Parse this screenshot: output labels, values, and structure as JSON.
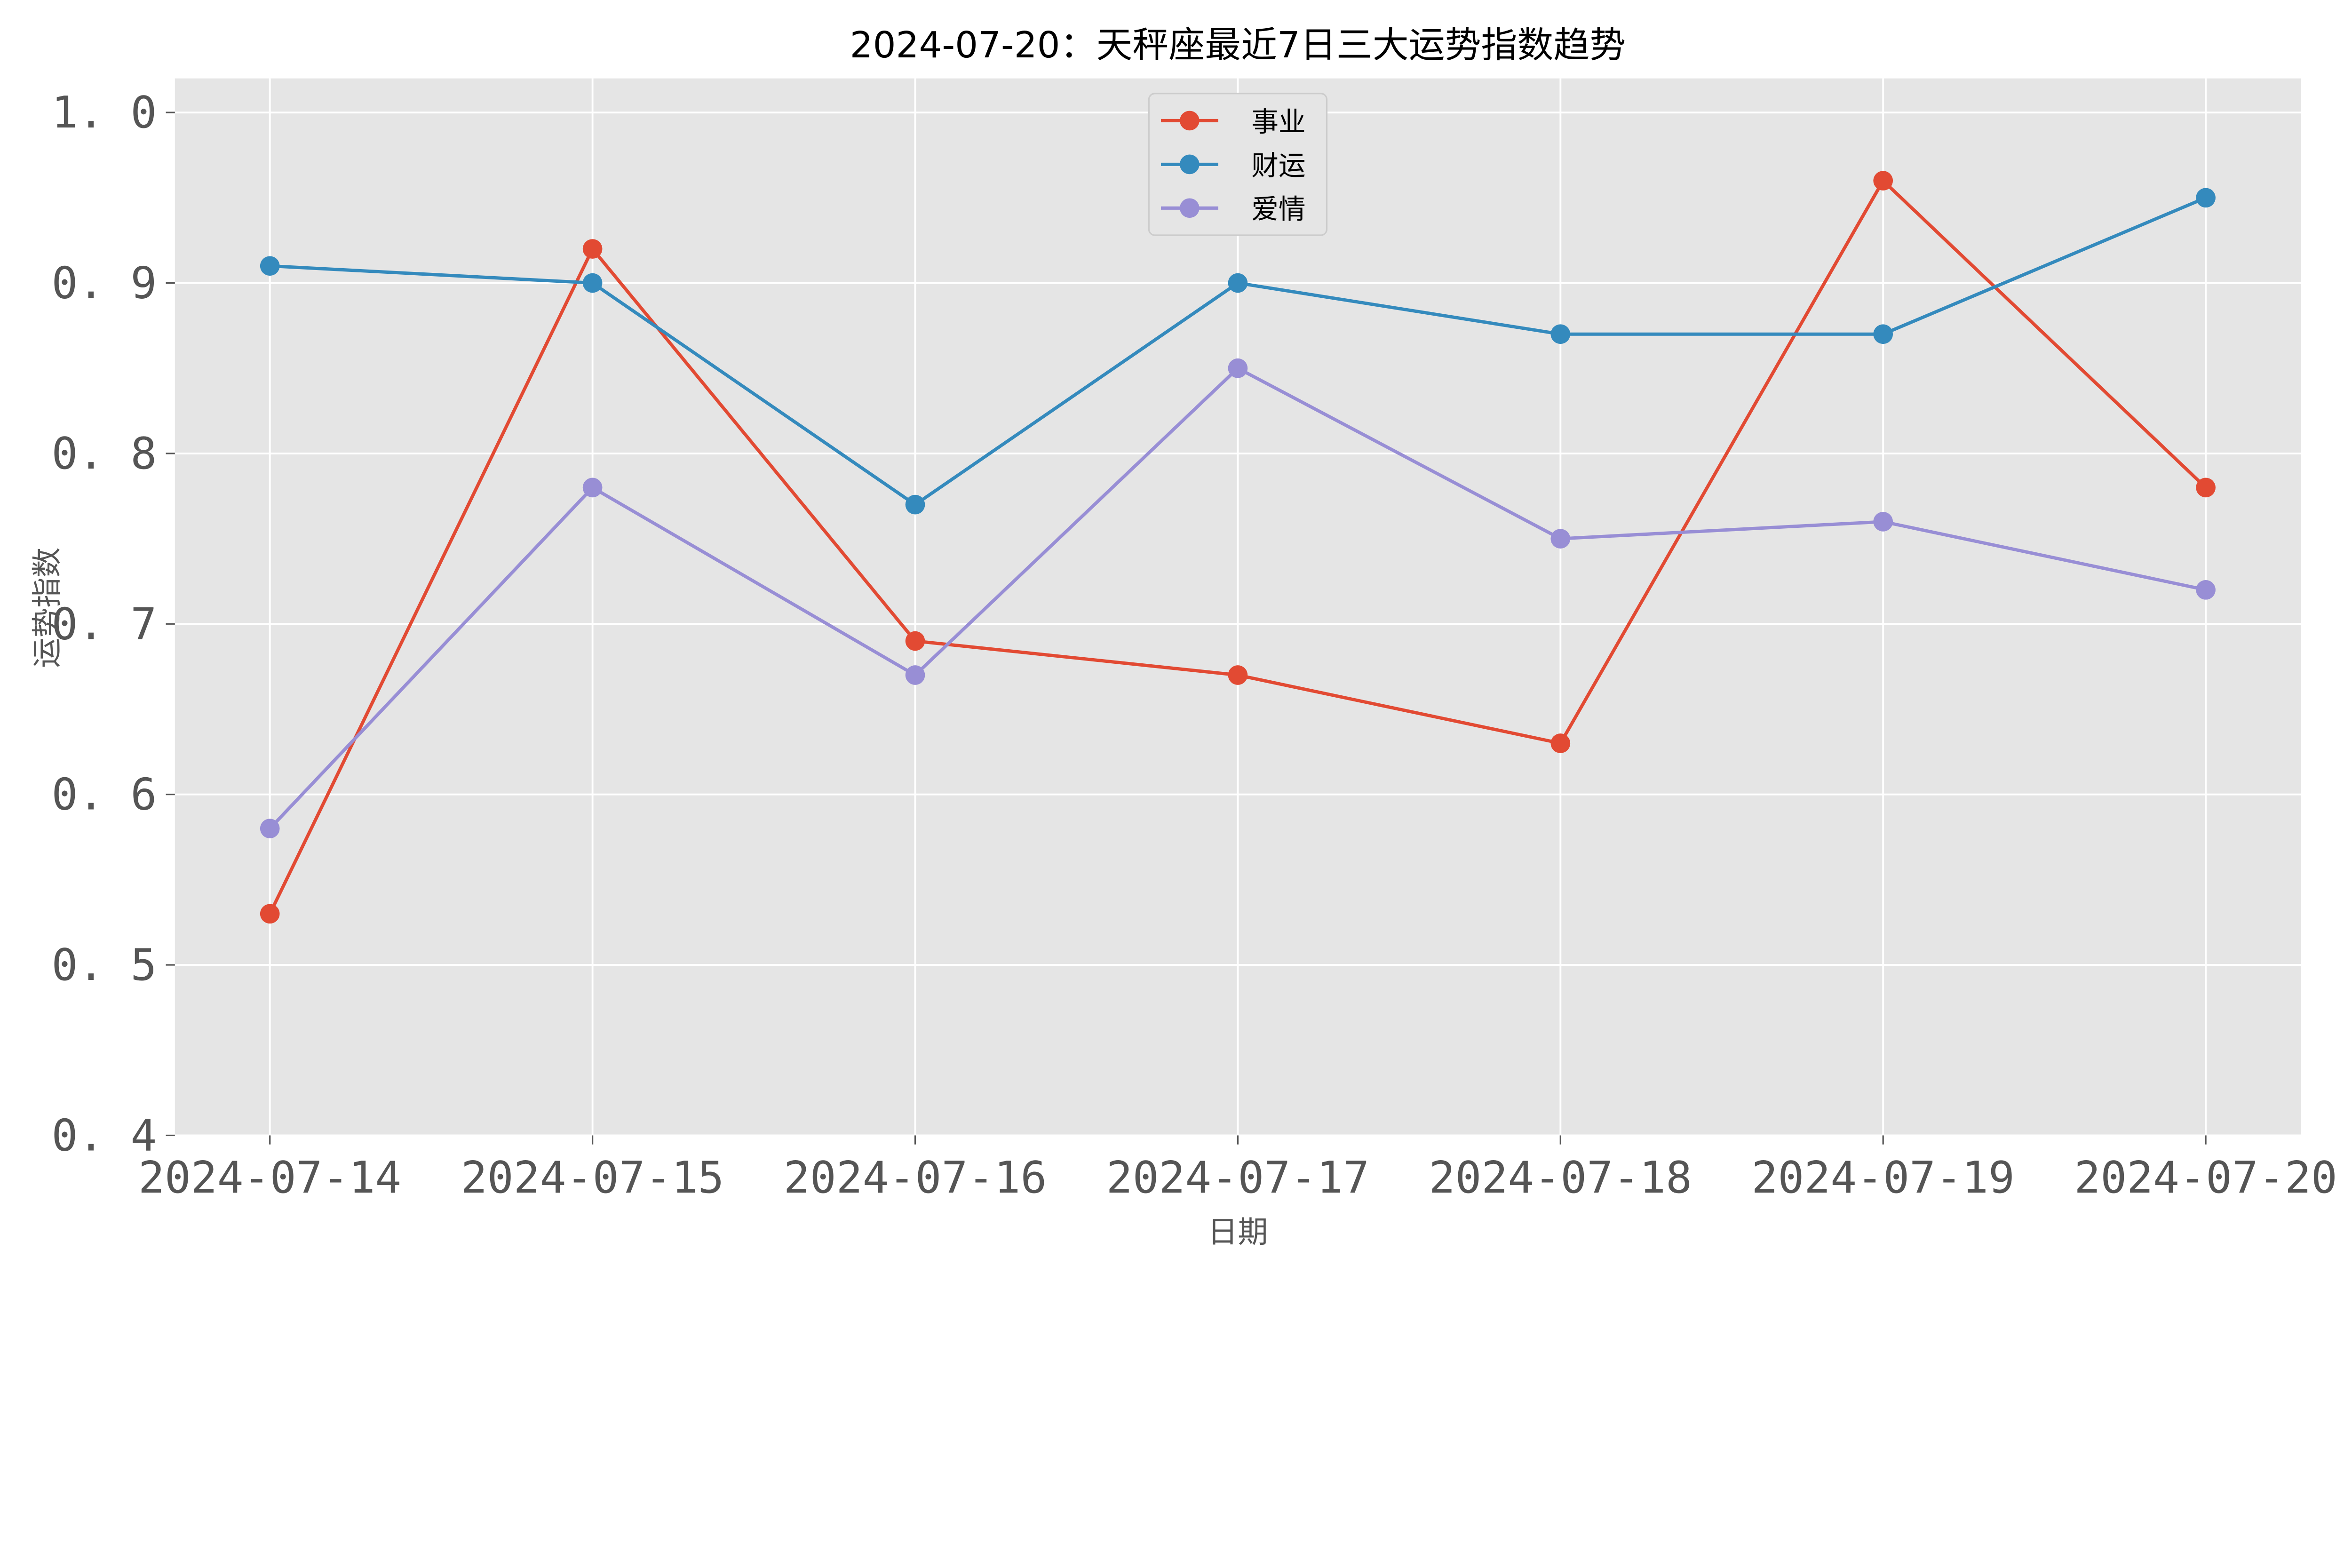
{
  "chart_data": {
    "type": "line",
    "title": "2024-07-20：天秤座最近7日三大运势指数趋势",
    "xlabel": "日期",
    "ylabel": "运势指数",
    "categories": [
      "2024-07-14",
      "2024-07-15",
      "2024-07-16",
      "2024-07-17",
      "2024-07-18",
      "2024-07-19",
      "2024-07-20"
    ],
    "ylim": [
      0.4,
      1.02
    ],
    "yticks": [
      "0.4",
      "0.5",
      "0.6",
      "0.7",
      "0.8",
      "0.9",
      "1.0"
    ],
    "grid": true,
    "legend_position": "top-center",
    "background": "#E5E5E5",
    "series": [
      {
        "name": "事业",
        "color": "#E24A33",
        "values": [
          0.53,
          0.92,
          0.69,
          0.67,
          0.63,
          0.96,
          0.78
        ]
      },
      {
        "name": "财运",
        "color": "#348ABD",
        "values": [
          0.91,
          0.9,
          0.77,
          0.9,
          0.87,
          0.87,
          0.95
        ]
      },
      {
        "name": "爱情",
        "color": "#988ED5",
        "values": [
          0.58,
          0.78,
          0.67,
          0.85,
          0.75,
          0.76,
          0.72
        ]
      }
    ]
  }
}
